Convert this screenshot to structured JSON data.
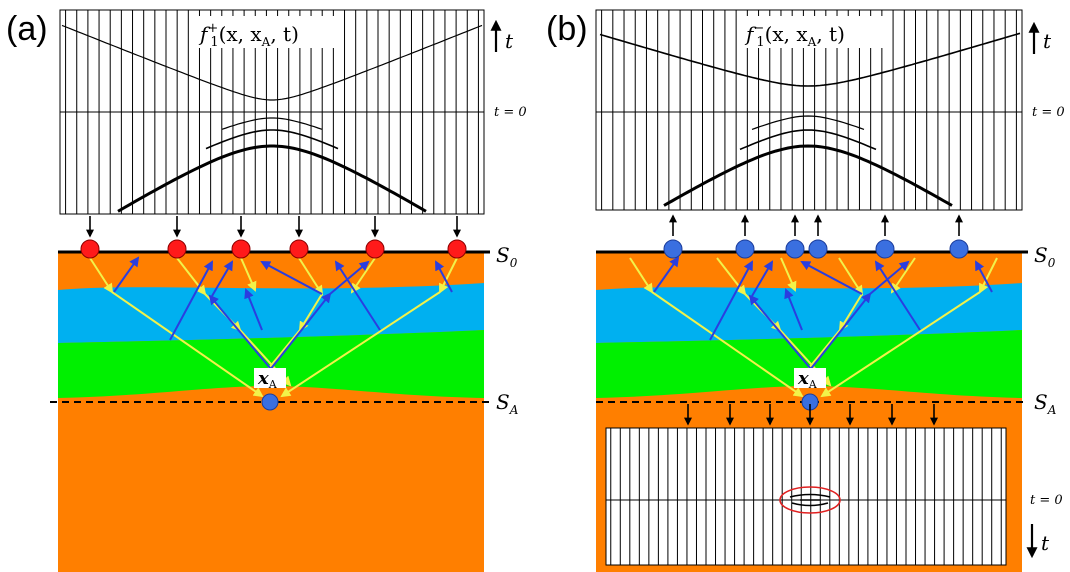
{
  "panels": [
    {
      "label": "(a)",
      "wavefield_label": "f",
      "wavefield_sup": "+",
      "wavefield_sub": "1",
      "wavefield_args": "(x, x",
      "wavefield_args_sub": "A",
      "wavefield_args_end": ", t)",
      "time_axis_label": "t",
      "t0_label": "t = 0",
      "surface_label": "S",
      "surface_label_sub": "0",
      "depth_level_label": "S",
      "depth_level_sub": "A",
      "focal_point_label": "x",
      "focal_point_sub": "A",
      "source_color": "#ff1a1a"
    },
    {
      "label": "(b)",
      "wavefield_label": "f",
      "wavefield_sup": "−",
      "wavefield_sub": "1",
      "wavefield_args": "(x, x",
      "wavefield_args_sub": "A",
      "wavefield_args_end": ", t)",
      "time_axis_label": "t",
      "t0_label": "t = 0",
      "surface_label": "S",
      "surface_label_sub": "0",
      "depth_level_label": "S",
      "depth_level_sub": "A",
      "focal_point_label": "x",
      "focal_point_sub": "A",
      "receiver_color": "#3a6fe0",
      "lower_time_axis_label": "t",
      "lower_t0_label": "t = 0"
    }
  ],
  "colors": {
    "layer_orange": "#ff7f00",
    "layer_blue": "#00b0f0",
    "layer_green": "#00f000",
    "ray_blue": "#2a3ee0",
    "ray_yellow": "#f2f24a",
    "focus_circle": "#e02020"
  }
}
